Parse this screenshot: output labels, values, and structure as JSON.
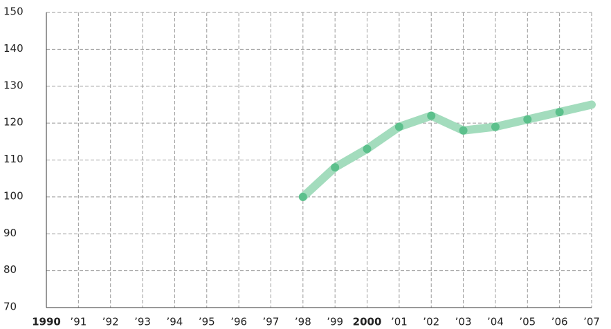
{
  "chart_data": {
    "type": "line",
    "categories": [
      "1990",
      "’91",
      "’92",
      "’93",
      "’94",
      "’95",
      "’96",
      "’97",
      "’98",
      "’99",
      "2000",
      "’01",
      "’02",
      "’03",
      "’04",
      "’05",
      "’06",
      "’07"
    ],
    "series": [
      {
        "color": "#a3dcbd",
        "marker_color": "#5cc08c",
        "values": [
          null,
          null,
          null,
          null,
          null,
          null,
          null,
          null,
          100,
          108,
          113,
          119,
          122,
          118,
          119,
          121,
          123,
          125
        ]
      }
    ],
    "ylim": [
      70,
      150
    ],
    "yticks": [
      70,
      80,
      90,
      100,
      110,
      120,
      130,
      140,
      150
    ],
    "grid": true
  }
}
